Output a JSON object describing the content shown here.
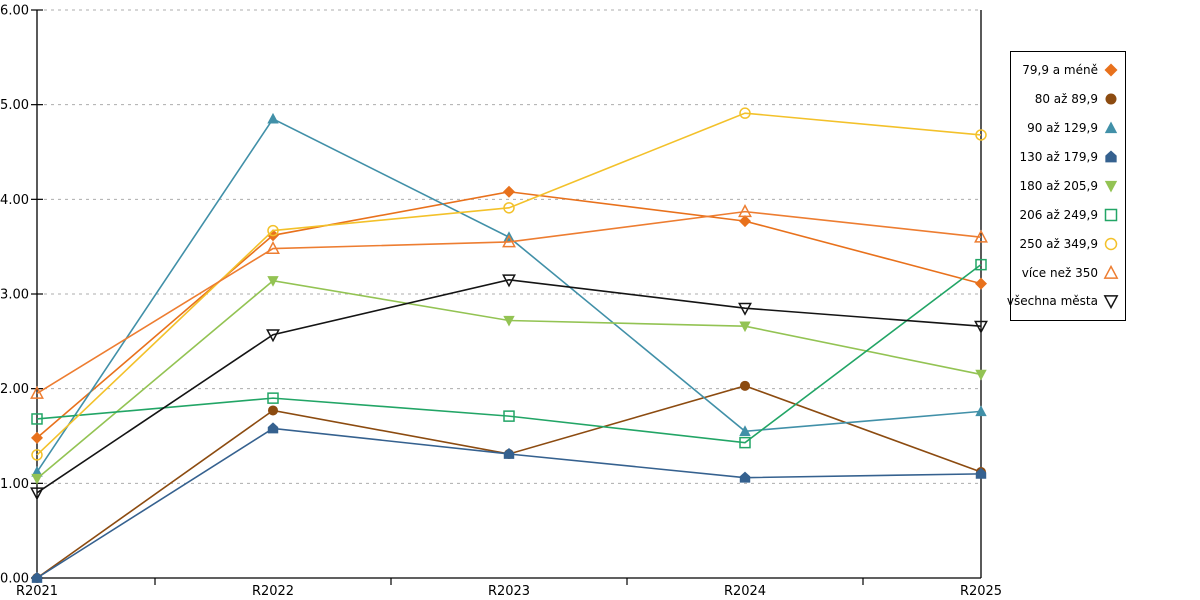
{
  "chart_data": {
    "type": "line",
    "title": "",
    "xlabel": "",
    "ylabel": "",
    "categories": [
      "R2021",
      "R2022",
      "R2023",
      "R2024",
      "R2025"
    ],
    "yticks": [
      "0.00",
      "1.00",
      "2.00",
      "3.00",
      "4.00",
      "5.00",
      "6.00"
    ],
    "ylim": [
      0,
      6
    ],
    "grid": "horizontal-dashed",
    "legend_position": "right",
    "series": [
      {
        "name": "79,9 a méně",
        "marker": "diamond-filled",
        "color": "#E8711C",
        "values": [
          1.48,
          3.62,
          4.08,
          3.77,
          3.11
        ]
      },
      {
        "name": "80 až 89,9",
        "marker": "circle-filled",
        "color": "#8C4B10",
        "values": [
          0.0,
          1.77,
          1.31,
          2.03,
          1.12
        ]
      },
      {
        "name": "90 až 129,9",
        "marker": "triangle-up-filled",
        "color": "#4190A8",
        "values": [
          1.12,
          4.85,
          3.6,
          1.55,
          1.76
        ]
      },
      {
        "name": "130 až 179,9",
        "marker": "pentagon-filled",
        "color": "#35618F",
        "values": [
          0.0,
          1.58,
          1.31,
          1.06,
          1.1
        ]
      },
      {
        "name": "180 až 205,9",
        "marker": "triangle-down-filled",
        "color": "#93C353",
        "values": [
          1.05,
          3.14,
          2.72,
          2.66,
          2.15
        ]
      },
      {
        "name": "206 až 249,9",
        "marker": "square-open",
        "color": "#22A566",
        "values": [
          1.68,
          1.9,
          1.71,
          1.43,
          3.31
        ]
      },
      {
        "name": "250 až 349,9",
        "marker": "circle-open",
        "color": "#F3C12A",
        "values": [
          1.3,
          3.67,
          3.91,
          4.91,
          4.68
        ]
      },
      {
        "name": "více než 350",
        "marker": "triangle-up-open",
        "color": "#ED7D31",
        "values": [
          1.95,
          3.48,
          3.55,
          3.87,
          3.6
        ]
      },
      {
        "name": "všechna města",
        "marker": "triangle-down-open",
        "color": "#141414",
        "values": [
          0.9,
          2.57,
          3.15,
          2.85,
          2.66
        ]
      }
    ],
    "axis_color": "#000000",
    "gridline_color": "#ADADAD"
  }
}
